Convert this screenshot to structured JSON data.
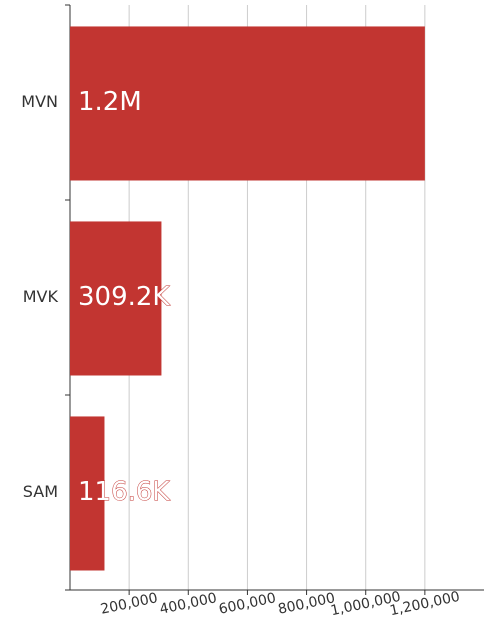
{
  "chart_data": {
    "type": "bar",
    "orientation": "horizontal",
    "categories": [
      "MVN",
      "MVK",
      "SAM"
    ],
    "values": [
      1200000,
      309200,
      116600
    ],
    "value_labels": [
      "1.2M",
      "309.2K",
      "116.6K"
    ],
    "color": "#c23531",
    "xlim": [
      0,
      1400000
    ],
    "xticks": [
      {
        "value": 200000,
        "label": "200,000"
      },
      {
        "value": 400000,
        "label": "400,000"
      },
      {
        "value": 600000,
        "label": "600,000"
      },
      {
        "value": 800000,
        "label": "800,000"
      },
      {
        "value": 1000000,
        "label": "1,000,000"
      },
      {
        "value": 1200000,
        "label": "1,200,000"
      }
    ],
    "grid": true
  }
}
